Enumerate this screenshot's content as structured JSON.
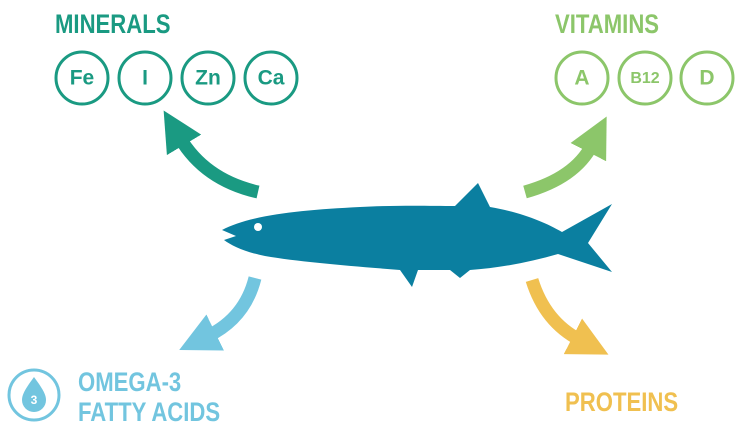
{
  "minerals": {
    "title": "MINERALS",
    "items": [
      "Fe",
      "I",
      "Zn",
      "Ca"
    ]
  },
  "vitamins": {
    "title": "VITAMINS",
    "items": [
      "A",
      "B12",
      "D"
    ]
  },
  "omega": {
    "icon": "3",
    "lines": [
      "OMEGA-3",
      "FATTY ACIDS"
    ]
  },
  "proteins": {
    "title": "PROTEINS"
  }
}
